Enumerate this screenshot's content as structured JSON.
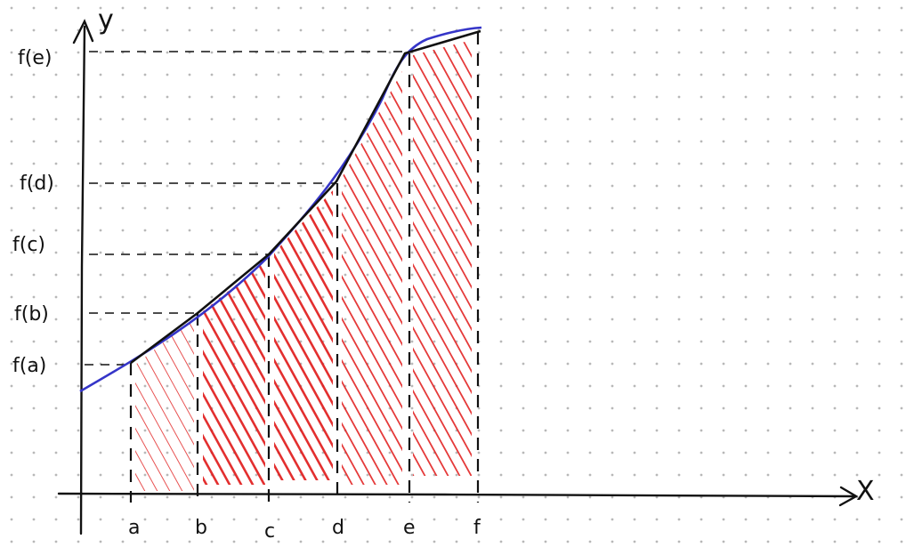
{
  "axes": {
    "y_label": "y",
    "x_label": "X"
  },
  "x_ticks": [
    {
      "label": "a"
    },
    {
      "label": "b"
    },
    {
      "label": "c"
    },
    {
      "label": "d"
    },
    {
      "label": "e"
    },
    {
      "label": "f"
    }
  ],
  "y_ticks": [
    {
      "label": "f(e)"
    },
    {
      "label": "f(d)"
    },
    {
      "label": "f(c)"
    },
    {
      "label": "f(b)"
    },
    {
      "label": "f(a)"
    }
  ],
  "colors": {
    "curve": "#3535c8",
    "polyline": "#111111",
    "hatch": "#e01818",
    "grid_dot": "#b8b8b8"
  }
}
